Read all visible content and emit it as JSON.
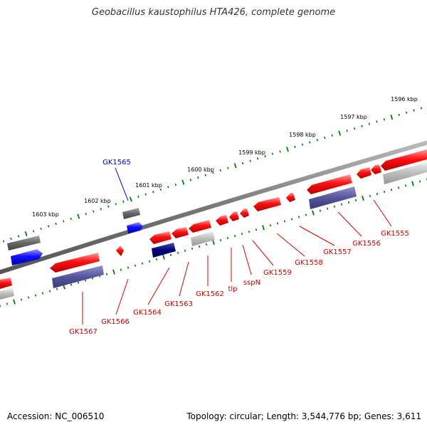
{
  "title": "Geobacillus kaustophilus HTA426, complete genome",
  "footer": {
    "accession": "Accession: NC_006510",
    "summary": "Topology: circular; Length: 3,544,776 bp; Genes: 3,611"
  },
  "colors": {
    "forward_gene": "#1010ff",
    "forward_highlight": "#00007a",
    "reverse_gene": "#ff1010",
    "pseudo_dark": "#666666",
    "light_gray": "#bbbbbb",
    "purple": "#55559a",
    "backbone": "#777777",
    "ticks": "#0a7a0a",
    "upper_label": "#0000cc",
    "lower_label": "#cc0000"
  },
  "scale_labels": [
    "1596 kbp",
    "1597 kbp",
    "1598 kbp",
    "1599 kbp",
    "1600 kbp",
    "1601 kbp",
    "1602 kbp",
    "1603 kbp"
  ],
  "upper_gene_labels": [
    "GK1565"
  ],
  "lower_gene_labels": [
    "GK1555",
    "GK1556",
    "GK1557",
    "GK1558",
    "GK1559",
    "sspN",
    "tlp",
    "GK1562",
    "GK1563",
    "GK1564",
    "GK1566",
    "GK1567"
  ]
}
